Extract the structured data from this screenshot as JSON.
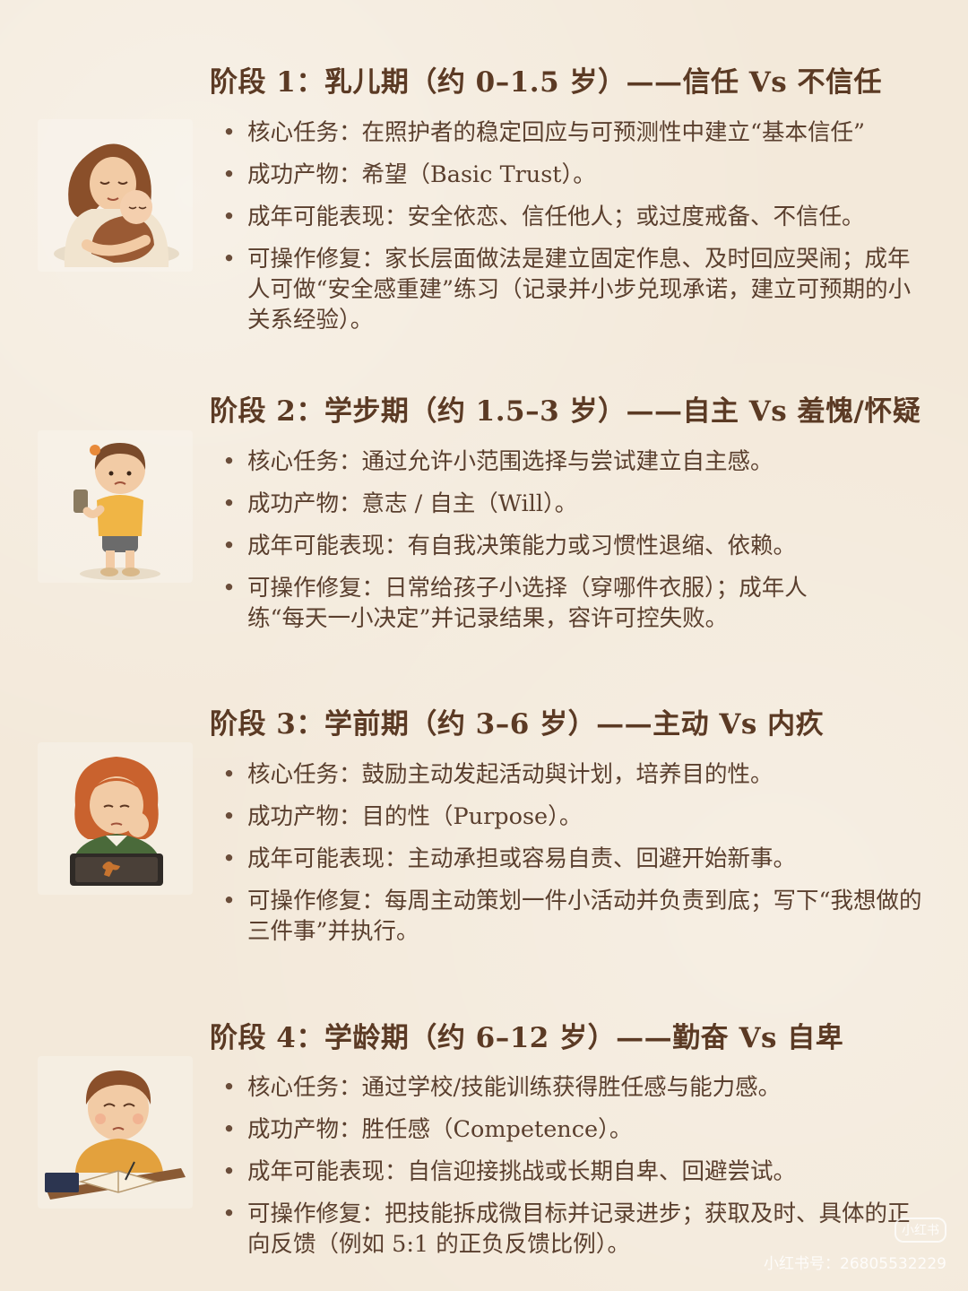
{
  "stages": [
    {
      "title": "阶段 1：乳儿期（约 0–1.5 岁）——信任 Vs 不信任",
      "illustration": "mother-holding-baby",
      "bullets": [
        "核心任务：在照护者的稳定回应与可预测性中建立“基本信任”",
        "成功产物：希望（Basic Trust）。",
        "成年可能表现：安全依恋、信任他人；或过度戒备、不信任。",
        "可操作修复：家长层面做法是建立固定作息、及时回应哭闹；成年人可做“安全感重建”练习（记录并小步兑现承诺，建立可预期的小关系经验）。"
      ]
    },
    {
      "title": "阶段 2：学步期（约 1.5–3 岁）——自主 Vs 羞愧/怀疑",
      "illustration": "toddler-holding-phone",
      "bullets": [
        "核心任务：通过允许小范围选择与尝试建立自主感。",
        "成功产物：意志 / 自主（Will）。",
        "成年可能表现：有自我决策能力或习惯性退缩、依赖。",
        "可操作修复：日常给孩子小选择（穿哪件衣服）；成年人练“每天一小决定”并记录结果，容许可控失败。"
      ]
    },
    {
      "title": "阶段 3：学前期（约 3–6 岁）——主动 Vs 内疚",
      "illustration": "sad-girl-with-baking-tray",
      "bullets": [
        "核心任务：鼓励主动发起活动與计划，培养目的性。",
        "成功产物：目的性（Purpose）。",
        "成年可能表现：主动承担或容易自责、回避开始新事。",
        "可操作修复：每周主动策划一件小活动并负责到底；写下“我想做的三件事”并执行。"
      ]
    },
    {
      "title": "阶段 4：学龄期（约 6–12 岁）——勤奋 Vs 自卑",
      "illustration": "boy-writing-in-book",
      "bullets": [
        "核心任务：通过学校/技能训练获得胜任感与能力感。",
        "成功产物：胜任感（Competence）。",
        "成年可能表现：自信迎接挑战或长期自卑、回避尝试。",
        "可操作修复：把技能拆成微目标并记录进步；获取及时、具体的正向反馈（例如 5:1 的正负反馈比例）。"
      ]
    }
  ],
  "watermark": {
    "logo": "小红书",
    "id_text": "小红书号：26805532229"
  },
  "colors": {
    "background": "#f3e9da",
    "title": "#5b3a24",
    "body_text": "#5a3f2e"
  }
}
